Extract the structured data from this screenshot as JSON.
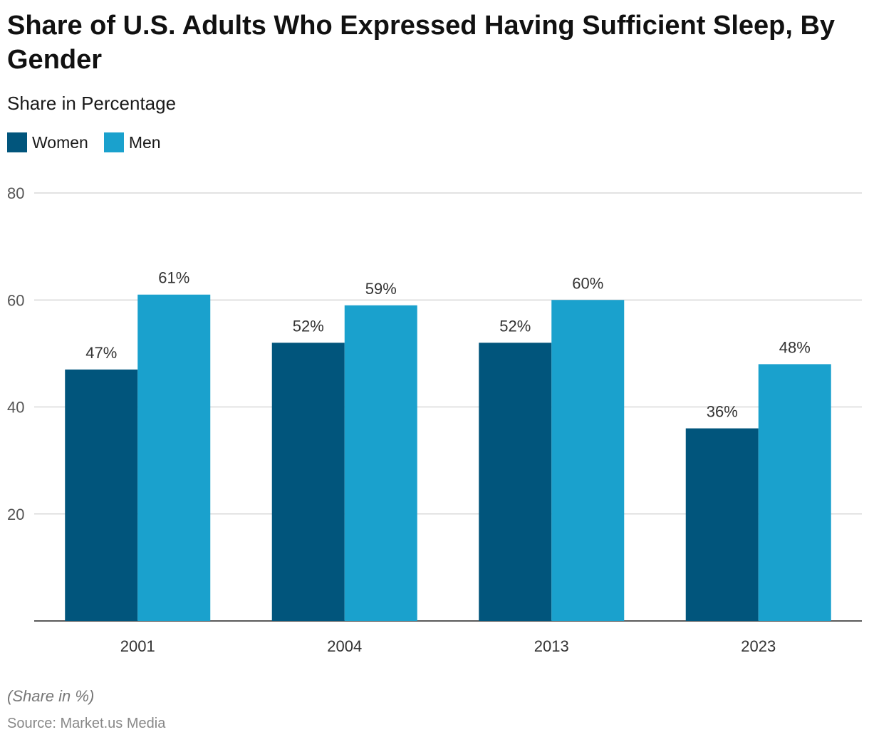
{
  "title": "Share of U.S. Adults Who Expressed Having Sufficient Sleep, By Gender",
  "subtitle": "Share in Percentage",
  "legend": [
    {
      "label": "Women",
      "color": "#01557c"
    },
    {
      "label": "Men",
      "color": "#1aa1cd"
    }
  ],
  "note": "(Share in %)",
  "source": "Source: Market.us Media",
  "chart_data": {
    "type": "bar",
    "title": "Share of U.S. Adults Who Expressed Having Sufficient Sleep, By Gender",
    "subtitle": "Share in Percentage",
    "categories": [
      "2001",
      "2004",
      "2013",
      "2023"
    ],
    "series": [
      {
        "name": "Women",
        "color": "#01557c",
        "values": [
          47,
          52,
          52,
          36
        ],
        "labels": [
          "47%",
          "52%",
          "52%",
          "36%"
        ]
      },
      {
        "name": "Men",
        "color": "#1aa1cd",
        "values": [
          61,
          59,
          60,
          48
        ],
        "labels": [
          "61%",
          "59%",
          "60%",
          "48%"
        ]
      }
    ],
    "yticks": [
      20,
      40,
      60,
      80
    ],
    "ylim": [
      0,
      80
    ],
    "grid": true,
    "legend_position": "top-left"
  }
}
